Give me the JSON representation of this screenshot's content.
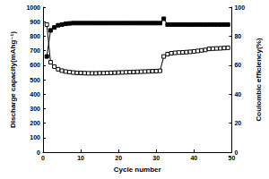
{
  "chart_data": {
    "type": "line",
    "xlabel": "Cycle number",
    "ylabel": "Discharge capacity(mAhg⁻¹)",
    "y2label": "Coulombic efficiency(%)",
    "x": [
      1,
      2,
      3,
      4,
      5,
      6,
      7,
      8,
      9,
      10,
      11,
      12,
      13,
      14,
      15,
      16,
      17,
      18,
      19,
      20,
      21,
      22,
      23,
      24,
      25,
      26,
      27,
      28,
      29,
      30,
      31,
      32,
      33,
      34,
      35,
      36,
      37,
      38,
      39,
      40,
      41,
      42,
      43,
      44,
      45,
      46,
      47,
      48,
      49
    ],
    "xlim": [
      0,
      50
    ],
    "xticks": [
      0,
      10,
      20,
      30,
      40,
      50
    ],
    "ylim": [
      0,
      1000
    ],
    "yticks": [
      0,
      100,
      200,
      300,
      400,
      500,
      600,
      700,
      800,
      900,
      1000
    ],
    "y2lim": [
      0,
      100
    ],
    "y2ticks": [
      0,
      20,
      40,
      60,
      80,
      100
    ],
    "grid": false,
    "series": [
      {
        "name": "Discharge capacity",
        "color": "#000000",
        "marker": "open-square",
        "values": [
          880,
          620,
          590,
          572,
          562,
          556,
          552,
          549,
          547,
          546,
          545,
          544,
          544,
          544,
          545,
          545,
          546,
          547,
          548,
          549,
          550,
          551,
          552,
          553,
          554,
          555,
          556,
          557,
          558,
          559,
          561,
          660,
          676,
          682,
          685,
          687,
          688,
          690,
          692,
          695,
          698,
          702,
          705,
          712,
          714,
          715,
          716,
          718,
          720
        ]
      },
      {
        "name": "Coulombic efficiency",
        "color": "#000000",
        "marker": "filled-square",
        "axis": "y2",
        "values": [
          66,
          84,
          86,
          87.5,
          88,
          88.5,
          88.8,
          89,
          89,
          89,
          89,
          89,
          89,
          89,
          89,
          89,
          89,
          89,
          89,
          89,
          89,
          89,
          89,
          89,
          89,
          89,
          89,
          89,
          89,
          89,
          89,
          92,
          88,
          88,
          88,
          88,
          88,
          88,
          88,
          88,
          88,
          88,
          88,
          88,
          88,
          88,
          88,
          88,
          88
        ]
      }
    ]
  }
}
